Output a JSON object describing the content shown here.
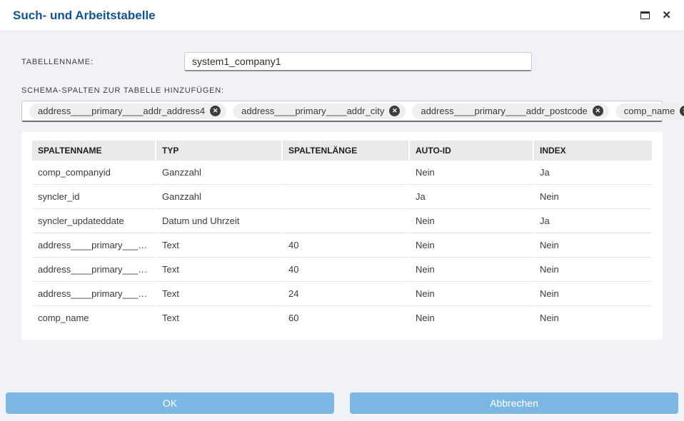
{
  "window": {
    "title": "Such- und Arbeitstabelle"
  },
  "icons": {
    "maximize": "maximize-square",
    "close": "✕",
    "chip_remove": "✕",
    "clear_all": "✕"
  },
  "form": {
    "table_name": {
      "label": "TABELLENNAME:",
      "value": "system1_company1"
    },
    "schema_columns": {
      "label": "SCHEMA-SPALTEN ZUR TABELLE HINZUFÜGEN:",
      "chips": [
        "address____primary____addr_address4",
        "address____primary____addr_city",
        "address____primary____addr_postcode",
        "comp_name"
      ]
    }
  },
  "table": {
    "columns": [
      "SPALTENNAME",
      "TYP",
      "SPALTENLÄNGE",
      "AUTO-ID",
      "INDEX"
    ],
    "rows": [
      [
        "comp_companyid",
        "Ganzzahl",
        "",
        "Nein",
        "Ja"
      ],
      [
        "syncler_id",
        "Ganzzahl",
        "",
        "Ja",
        "Nein"
      ],
      [
        "syncler_updateddate",
        "Datum und Uhrzeit",
        "",
        "Nein",
        "Ja"
      ],
      [
        "address____primary____ad...",
        "Text",
        "40",
        "Nein",
        "Nein"
      ],
      [
        "address____primary____ad...",
        "Text",
        "40",
        "Nein",
        "Nein"
      ],
      [
        "address____primary____ad...",
        "Text",
        "24",
        "Nein",
        "Nein"
      ],
      [
        "comp_name",
        "Text",
        "60",
        "Nein",
        "Nein"
      ]
    ]
  },
  "footer": {
    "ok": "OK",
    "cancel": "Abbrechen"
  },
  "colors": {
    "title_blue": "#15538e",
    "button_blue": "#7cb7e3",
    "body_bg": "#f1f2f7",
    "table_header_bg": "#e9e9e9",
    "chip_bg": "#efefef",
    "chip_remove_bg": "#3d3d3d"
  }
}
